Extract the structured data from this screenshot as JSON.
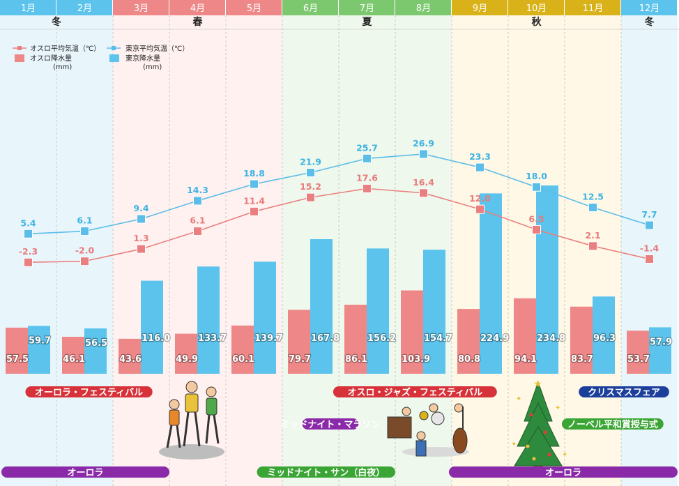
{
  "colors": {
    "oslo": "#ee8888",
    "tokyo": "#5bc3ec",
    "oslo_line": "#ea7f7f",
    "tokyo_line": "#5cbde8",
    "oslo_label": "#e87a7a",
    "tokyo_label": "#3db3e3"
  },
  "header": {
    "months": [
      "1月",
      "2月",
      "3月",
      "4月",
      "5月",
      "6月",
      "7月",
      "8月",
      "9月",
      "10月",
      "11月",
      "12月"
    ],
    "seasons": [
      {
        "label": "冬",
        "from": 0,
        "to": 2,
        "band": "#e8f6fc",
        "header": "#5bc3ec"
      },
      {
        "label": "春",
        "from": 2,
        "to": 5,
        "band": "#fff1ef",
        "header": "#ee8888"
      },
      {
        "label": "夏",
        "from": 5,
        "to": 8,
        "band": "#eef8ec",
        "header": "#7cc86e"
      },
      {
        "label": "秋",
        "from": 8,
        "to": 11,
        "band": "#fff8e6",
        "header": "#d9b21a"
      },
      {
        "label": "冬",
        "from": 11,
        "to": 12,
        "band": "#e8f6fc",
        "header": "#5bc3ec"
      }
    ]
  },
  "legend": {
    "oslo_temp": "オスロ平均気温（℃）",
    "tokyo_temp": "東京平均気温（℃）",
    "oslo_rain": "オスロ降水量",
    "tokyo_rain": "東京降水量",
    "rain_unit": "(mm)"
  },
  "chart_data": {
    "type": "bar",
    "categories": [
      "1月",
      "2月",
      "3月",
      "4月",
      "5月",
      "6月",
      "7月",
      "8月",
      "9月",
      "10月",
      "11月",
      "12月"
    ],
    "series": [
      {
        "name": "オスロ降水量 (mm)",
        "kind": "bar",
        "values": [
          57.5,
          46.1,
          43.6,
          49.9,
          60.1,
          79.7,
          86.1,
          103.9,
          80.8,
          94.1,
          83.7,
          53.7
        ]
      },
      {
        "name": "東京降水量 (mm)",
        "kind": "bar",
        "values": [
          59.7,
          56.5,
          116.0,
          133.7,
          139.7,
          167.8,
          156.2,
          154.7,
          224.9,
          234.8,
          96.3,
          57.9
        ]
      },
      {
        "name": "オスロ平均気温（℃）",
        "kind": "line",
        "values": [
          -2.3,
          -2.0,
          1.3,
          6.1,
          11.4,
          15.2,
          17.6,
          16.4,
          12.0,
          6.5,
          2.1,
          -1.4
        ]
      },
      {
        "name": "東京平均気温（℃）",
        "kind": "line",
        "values": [
          5.4,
          6.1,
          9.4,
          14.3,
          18.8,
          21.9,
          25.7,
          26.9,
          23.3,
          18.0,
          12.5,
          7.7
        ]
      }
    ],
    "rain_ylim": [
      0,
      280
    ],
    "temp_ylim": [
      -10,
      28
    ],
    "grid": false
  },
  "events": [
    {
      "label": "オーロラ・フェスティバル",
      "color": "#d7323a",
      "start_month": 0.45,
      "end_month": 2.7,
      "row": 0
    },
    {
      "label": "オスロ・ジャズ・フェスティバル",
      "color": "#d7323a",
      "start_month": 5.9,
      "end_month": 8.8,
      "row": 0
    },
    {
      "label": "クリスマスフェア",
      "color": "#1c3f9b",
      "start_month": 10.25,
      "end_month": 11.85,
      "row": 0
    },
    {
      "label": "ミッドナイト・マラソン",
      "color": "#8a2aa8",
      "start_month": 5.35,
      "end_month": 6.35,
      "row": 1
    },
    {
      "label": "ノーベル平和賞授与式",
      "color": "#3aa535",
      "start_month": 9.95,
      "end_month": 11.75,
      "row": 1
    },
    {
      "label": "オーロラ",
      "color": "#8a2aa8",
      "start_month": 0.0,
      "end_month": 3.0,
      "row": 2
    },
    {
      "label": "ミッドナイト・サン（白夜）",
      "color": "#3aa535",
      "start_month": 4.55,
      "end_month": 7.0,
      "row": 2
    },
    {
      "label": "オーロラ",
      "color": "#8a2aa8",
      "start_month": 7.95,
      "end_month": 12.0,
      "row": 2
    }
  ]
}
